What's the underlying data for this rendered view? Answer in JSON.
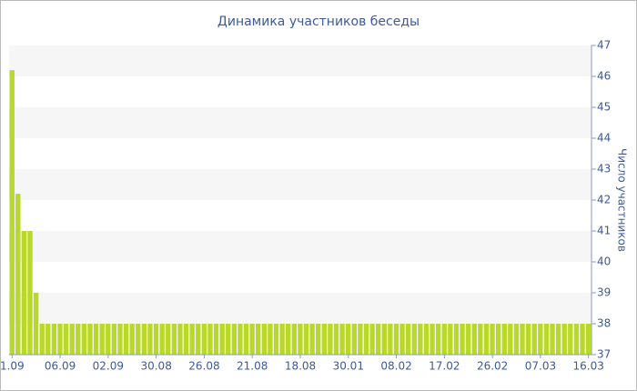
{
  "chart_data": {
    "type": "bar",
    "title": "Динамика участников беседы",
    "y_label": "Число участников",
    "categories": [
      "1.09",
      null,
      null,
      null,
      null,
      null,
      null,
      null,
      "06.09",
      null,
      null,
      null,
      null,
      null,
      null,
      null,
      "02.09",
      null,
      null,
      null,
      null,
      null,
      null,
      null,
      "30.08",
      null,
      null,
      null,
      null,
      null,
      null,
      null,
      "26.08",
      null,
      null,
      null,
      null,
      null,
      null,
      null,
      "21.08",
      null,
      null,
      null,
      null,
      null,
      null,
      null,
      "18.08",
      null,
      null,
      null,
      null,
      null,
      null,
      null,
      "30.01",
      null,
      null,
      null,
      null,
      null,
      null,
      null,
      "08.02",
      null,
      null,
      null,
      null,
      null,
      null,
      null,
      "17.02",
      null,
      null,
      null,
      null,
      null,
      null,
      null,
      "26.02",
      null,
      null,
      null,
      null,
      null,
      null,
      null,
      "07.03",
      null,
      null,
      null,
      null,
      null,
      null,
      null,
      "16.03"
    ],
    "values": [
      46.2,
      42.2,
      41,
      41,
      39,
      38,
      38,
      38,
      38,
      38,
      38,
      38,
      38,
      38,
      38,
      38,
      38,
      38,
      38,
      38,
      38,
      38,
      38,
      38,
      38,
      38,
      38,
      38,
      38,
      38,
      38,
      38,
      38,
      38,
      38,
      38,
      38,
      38,
      38,
      38,
      38,
      38,
      38,
      38,
      38,
      38,
      38,
      38,
      38,
      38,
      38,
      38,
      38,
      38,
      38,
      38,
      38,
      38,
      38,
      38,
      38,
      38,
      38,
      38,
      38,
      38,
      38,
      38,
      38,
      38,
      38,
      38,
      38,
      38,
      38,
      38,
      38,
      38,
      38,
      38,
      38,
      38,
      38,
      38,
      38,
      38,
      38,
      38,
      38,
      38,
      38,
      38,
      38,
      38,
      38,
      38,
      38
    ],
    "color": "#b8d82a",
    "ylim": [
      37,
      47
    ],
    "yticks": [
      37,
      38,
      39,
      40,
      41,
      42,
      43,
      44,
      45,
      46,
      47
    ],
    "grid": true
  }
}
